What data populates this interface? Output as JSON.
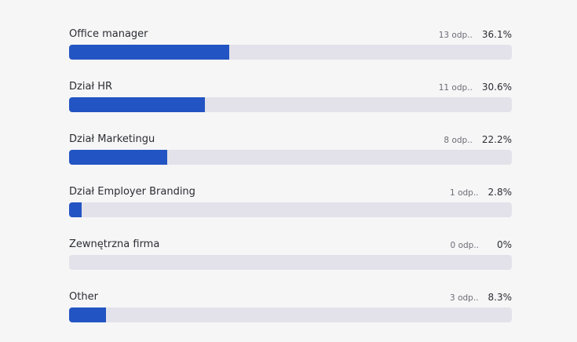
{
  "chart_data": {
    "type": "bar",
    "orientation": "horizontal",
    "title": "",
    "xlabel": "",
    "ylabel": "",
    "xlim": [
      0,
      100
    ],
    "grid": false,
    "legend": "none",
    "colors": {
      "fill": "#2354c3",
      "track": "#e3e2ea",
      "background": "#f6f6f7"
    },
    "items": [
      {
        "label": "Office manager",
        "count_text": "13 odp..",
        "percent_text": "36.1%",
        "value": 36.1
      },
      {
        "label": "Dział HR",
        "count_text": "11 odp..",
        "percent_text": "30.6%",
        "value": 30.6
      },
      {
        "label": "Dział Marketingu",
        "count_text": "8 odp..",
        "percent_text": "22.2%",
        "value": 22.2
      },
      {
        "label": "Dział Employer Branding",
        "count_text": "1 odp..",
        "percent_text": "2.8%",
        "value": 2.8
      },
      {
        "label": "Zewnętrzna firma",
        "count_text": "0 odp..",
        "percent_text": "0%",
        "value": 0
      },
      {
        "label": "Other",
        "count_text": "3 odp..",
        "percent_text": "8.3%",
        "value": 8.3
      }
    ]
  }
}
